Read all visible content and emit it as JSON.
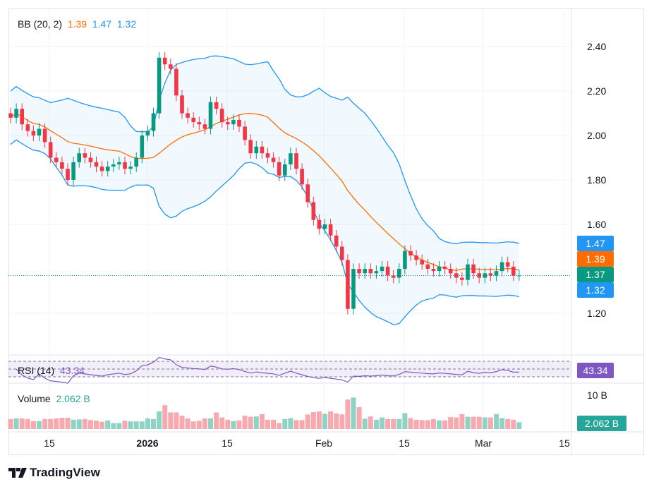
{
  "legend": {
    "bb_label": "BB (20, 2)",
    "bb_basis": "1.39",
    "bb_upper": "1.47",
    "bb_lower": "1.32",
    "rsi_label": "RSI (14)",
    "rsi_value": "43.34",
    "volume_label": "Volume",
    "volume_value": "2.062 B"
  },
  "tags": {
    "upper": "1.47",
    "basis": "1.39",
    "last": "1.37",
    "lower": "1.32",
    "rsi": "43.34",
    "volume": "2.062 B"
  },
  "colors": {
    "up": "#089981",
    "down": "#f23645",
    "vol_up": "#8fd3c5",
    "vol_down": "#f7a9b0",
    "band": "#2196f3",
    "basis": "#ff6d00",
    "rsi": "#7e57c2"
  },
  "brand": "TradingView",
  "chart_data": {
    "type": "candlestick",
    "price_ticks": [
      "2.40",
      "2.20",
      "2.00",
      "1.80",
      "1.60",
      "1.20"
    ],
    "volume_tick": "10 B",
    "time_ticks": [
      "15",
      "2026",
      "15",
      "Feb",
      "15",
      "Mar",
      "15"
    ],
    "ylim": [
      1.1,
      2.55
    ],
    "start_date": "2025-12-08",
    "closes": [
      2.08,
      2.12,
      2.05,
      2.02,
      2.0,
      2.03,
      1.97,
      1.9,
      1.88,
      1.85,
      1.8,
      1.88,
      1.92,
      1.9,
      1.88,
      1.86,
      1.84,
      1.86,
      1.87,
      1.88,
      1.85,
      1.86,
      1.9,
      2.0,
      2.02,
      2.1,
      2.35,
      2.32,
      2.3,
      2.18,
      2.1,
      2.08,
      2.06,
      2.05,
      2.03,
      2.15,
      2.12,
      2.06,
      2.05,
      2.07,
      2.04,
      1.98,
      1.92,
      1.95,
      1.92,
      1.9,
      1.88,
      1.82,
      1.87,
      1.92,
      1.85,
      1.78,
      1.7,
      1.62,
      1.58,
      1.6,
      1.55,
      1.5,
      1.44,
      1.22,
      1.4,
      1.38,
      1.4,
      1.38,
      1.39,
      1.41,
      1.37,
      1.36,
      1.4,
      1.48,
      1.46,
      1.44,
      1.42,
      1.4,
      1.39,
      1.41,
      1.4,
      1.38,
      1.36,
      1.35,
      1.42,
      1.38,
      1.36,
      1.38,
      1.37,
      1.39,
      1.43,
      1.41,
      1.37,
      1.37
    ],
    "volumes_billion": [
      3.0,
      3.2,
      3.2,
      3.0,
      2.4,
      2.4,
      3.0,
      3.0,
      3.2,
      3.4,
      3.4,
      2.8,
      2.9,
      3.0,
      2.7,
      2.5,
      2.2,
      2.6,
      1.8,
      1.8,
      2.5,
      2.3,
      2.3,
      2.3,
      3.2,
      3.0,
      5.3,
      7.2,
      5.0,
      5.0,
      4.0,
      3.2,
      2.3,
      2.5,
      3.2,
      3.2,
      5.0,
      3.5,
      2.8,
      2.4,
      2.6,
      4.0,
      3.7,
      3.8,
      4.5,
      2.8,
      2.8,
      1.8,
      3.0,
      3.3,
      2.7,
      2.7,
      4.4,
      5.1,
      5.3,
      4.6,
      5.3,
      4.7,
      4.4,
      8.9,
      9.5,
      6.6,
      3.1,
      3.8,
      2.8,
      3.5,
      3.0,
      3.0,
      3.0,
      4.8,
      3.3,
      2.8,
      2.7,
      2.7,
      3.0,
      2.6,
      2.6,
      3.6,
      3.5,
      4.5,
      3.7,
      3.7,
      3.7,
      3.5,
      3.5,
      4.5,
      3.3,
      3.0,
      2.8,
      2.06
    ]
  }
}
